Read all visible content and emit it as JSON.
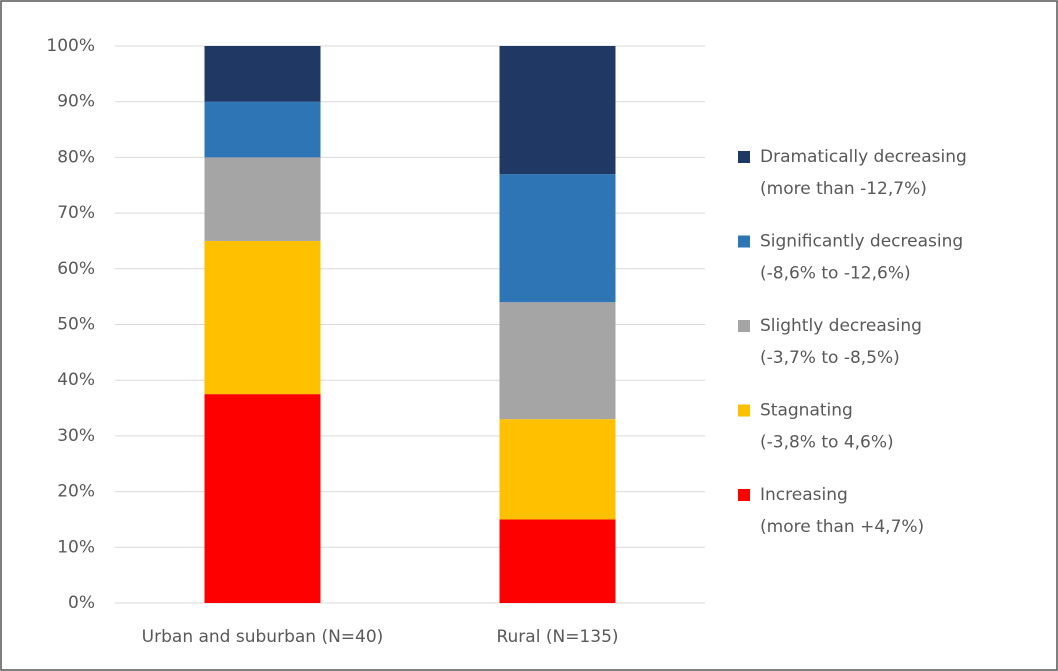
{
  "chart_data": {
    "type": "stacked_bar",
    "categories": [
      "Urban and suburban (N=40)",
      "Rural (N=135)"
    ],
    "series": [
      {
        "name": "Increasing",
        "range": "(more than +4,7%)",
        "color": "#ff0000",
        "values": [
          37.5,
          15
        ]
      },
      {
        "name": "Stagnating",
        "range": "(-3,8% to 4,6%)",
        "color": "#ffc000",
        "values": [
          27.5,
          18
        ]
      },
      {
        "name": "Slightly decreasing",
        "range": "(-3,7% to -8,5%)",
        "color": "#a5a5a5",
        "values": [
          15,
          21
        ]
      },
      {
        "name": "Significantly decreasing",
        "range": "(-8,6% to -12,6%)",
        "color": "#2e75b6",
        "values": [
          10,
          23
        ]
      },
      {
        "name": "Dramatically decreasing",
        "range": "(more than -12,7%)",
        "color": "#203864",
        "values": [
          10,
          23
        ]
      }
    ],
    "ylim": [
      0,
      100
    ],
    "yticks": [
      {
        "value": 0,
        "label": "0%"
      },
      {
        "value": 10,
        "label": "10%"
      },
      {
        "value": 20,
        "label": "20%"
      },
      {
        "value": 30,
        "label": "30%"
      },
      {
        "value": 40,
        "label": "40%"
      },
      {
        "value": 50,
        "label": "50%"
      },
      {
        "value": 60,
        "label": "60%"
      },
      {
        "value": 70,
        "label": "70%"
      },
      {
        "value": 80,
        "label": "80%"
      },
      {
        "value": 90,
        "label": "90%"
      },
      {
        "value": 100,
        "label": "100%"
      }
    ],
    "grid": true,
    "legend": "right"
  }
}
